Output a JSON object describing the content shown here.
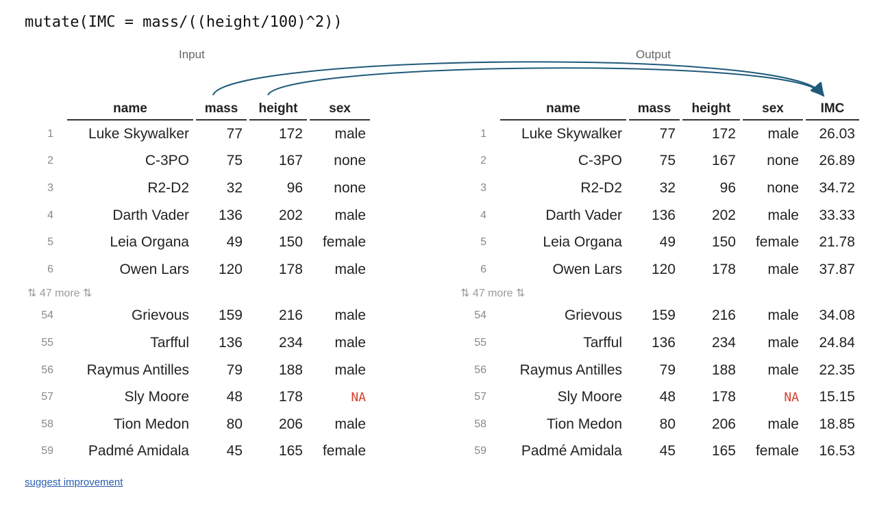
{
  "code": "mutate(IMC = mass/((height/100)^2))",
  "input_label": "Input",
  "output_label": "Output",
  "more_indicator": "⇅ 47 more ⇅",
  "suggest_link": "suggest improvement",
  "input_table": {
    "columns": [
      "name",
      "mass",
      "height",
      "sex"
    ],
    "rows_top": [
      {
        "rn": "1",
        "name": "Luke Skywalker",
        "mass": "77",
        "height": "172",
        "sex": "male"
      },
      {
        "rn": "2",
        "name": "C-3PO",
        "mass": "75",
        "height": "167",
        "sex": "none"
      },
      {
        "rn": "3",
        "name": "R2-D2",
        "mass": "32",
        "height": "96",
        "sex": "none"
      },
      {
        "rn": "4",
        "name": "Darth Vader",
        "mass": "136",
        "height": "202",
        "sex": "male"
      },
      {
        "rn": "5",
        "name": "Leia Organa",
        "mass": "49",
        "height": "150",
        "sex": "female"
      },
      {
        "rn": "6",
        "name": "Owen Lars",
        "mass": "120",
        "height": "178",
        "sex": "male"
      }
    ],
    "rows_bottom": [
      {
        "rn": "54",
        "name": "Grievous",
        "mass": "159",
        "height": "216",
        "sex": "male"
      },
      {
        "rn": "55",
        "name": "Tarfful",
        "mass": "136",
        "height": "234",
        "sex": "male"
      },
      {
        "rn": "56",
        "name": "Raymus Antilles",
        "mass": "79",
        "height": "188",
        "sex": "male"
      },
      {
        "rn": "57",
        "name": "Sly Moore",
        "mass": "48",
        "height": "178",
        "sex": "NA"
      },
      {
        "rn": "58",
        "name": "Tion Medon",
        "mass": "80",
        "height": "206",
        "sex": "male"
      },
      {
        "rn": "59",
        "name": "Padmé Amidala",
        "mass": "45",
        "height": "165",
        "sex": "female"
      }
    ]
  },
  "output_table": {
    "columns": [
      "name",
      "mass",
      "height",
      "sex",
      "IMC"
    ],
    "rows_top": [
      {
        "rn": "1",
        "name": "Luke Skywalker",
        "mass": "77",
        "height": "172",
        "sex": "male",
        "IMC": "26.03"
      },
      {
        "rn": "2",
        "name": "C-3PO",
        "mass": "75",
        "height": "167",
        "sex": "none",
        "IMC": "26.89"
      },
      {
        "rn": "3",
        "name": "R2-D2",
        "mass": "32",
        "height": "96",
        "sex": "none",
        "IMC": "34.72"
      },
      {
        "rn": "4",
        "name": "Darth Vader",
        "mass": "136",
        "height": "202",
        "sex": "male",
        "IMC": "33.33"
      },
      {
        "rn": "5",
        "name": "Leia Organa",
        "mass": "49",
        "height": "150",
        "sex": "female",
        "IMC": "21.78"
      },
      {
        "rn": "6",
        "name": "Owen Lars",
        "mass": "120",
        "height": "178",
        "sex": "male",
        "IMC": "37.87"
      }
    ],
    "rows_bottom": [
      {
        "rn": "54",
        "name": "Grievous",
        "mass": "159",
        "height": "216",
        "sex": "male",
        "IMC": "34.08"
      },
      {
        "rn": "55",
        "name": "Tarfful",
        "mass": "136",
        "height": "234",
        "sex": "male",
        "IMC": "24.84"
      },
      {
        "rn": "56",
        "name": "Raymus Antilles",
        "mass": "79",
        "height": "188",
        "sex": "male",
        "IMC": "22.35"
      },
      {
        "rn": "57",
        "name": "Sly Moore",
        "mass": "48",
        "height": "178",
        "sex": "NA",
        "IMC": "15.15"
      },
      {
        "rn": "58",
        "name": "Tion Medon",
        "mass": "80",
        "height": "206",
        "sex": "male",
        "IMC": "18.85"
      },
      {
        "rn": "59",
        "name": "Padmé Amidala",
        "mass": "45",
        "height": "165",
        "sex": "female",
        "IMC": "16.53"
      }
    ]
  },
  "colors": {
    "arrow": "#1f5a7a",
    "na": "#d43f2a",
    "link": "#2a5db0"
  }
}
